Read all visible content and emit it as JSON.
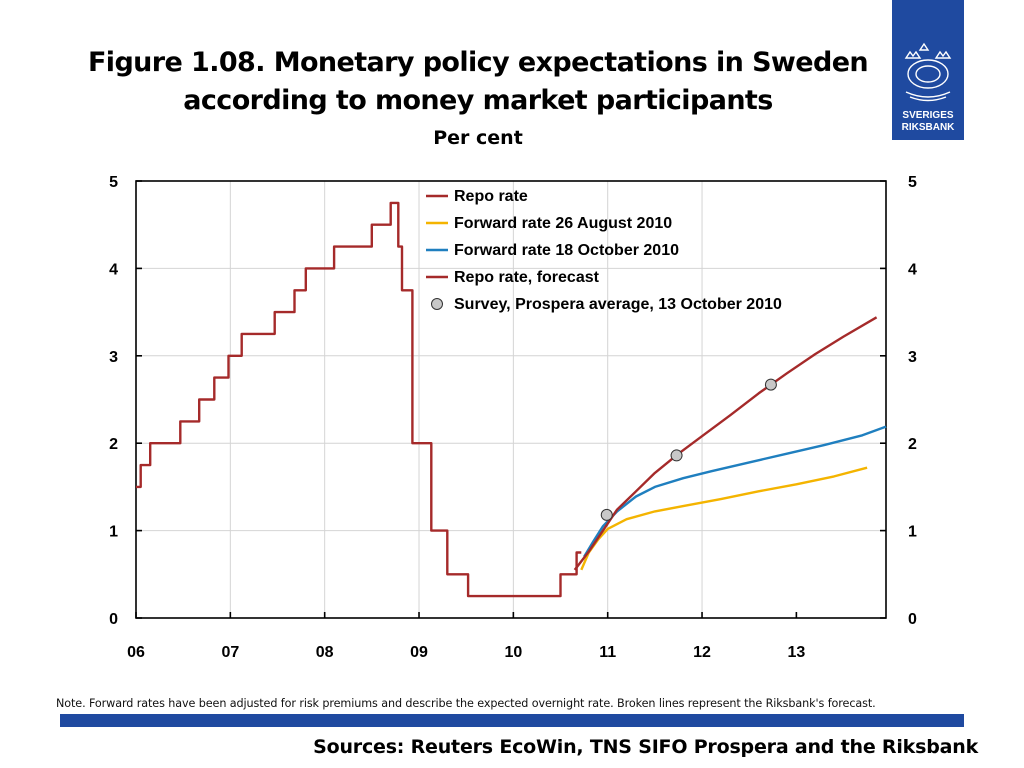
{
  "title_line1": "Figure 1.08. Monetary policy expectations in Sweden",
  "title_line2": "according to money market participants",
  "logo": {
    "line1": "SVERIGES",
    "line2": "RIKSBANK",
    "color": "#1f4aa0"
  },
  "note": "Note. Forward rates have been adjusted for risk premiums and describe the expected overnight rate. Broken lines represent the Riksbank's forecast.",
  "sources": "Sources: Reuters EcoWin, TNS SIFO Prospera and the Riksbank",
  "chart_data": {
    "type": "line",
    "title": "Per cent",
    "xlim": [
      2006.0,
      2013.95
    ],
    "ylim": [
      0,
      5
    ],
    "yticks": [
      0,
      1,
      2,
      3,
      4,
      5
    ],
    "xticks": [
      {
        "value": 2006.0,
        "label": "06"
      },
      {
        "value": 2007.0,
        "label": "07"
      },
      {
        "value": 2008.0,
        "label": "08"
      },
      {
        "value": 2009.0,
        "label": "09"
      },
      {
        "value": 2010.0,
        "label": "10"
      },
      {
        "value": 2011.0,
        "label": "11"
      },
      {
        "value": 2012.0,
        "label": "12"
      },
      {
        "value": 2013.0,
        "label": "13"
      }
    ],
    "vgrid": [
      2007.0,
      2008.0,
      2009.0,
      2010.0,
      2011.0,
      2012.0
    ],
    "series": [
      {
        "name": "Repo rate",
        "color": "#a52a2a",
        "step": true,
        "points": [
          [
            2006.0,
            1.5
          ],
          [
            2006.05,
            1.75
          ],
          [
            2006.15,
            2.0
          ],
          [
            2006.47,
            2.25
          ],
          [
            2006.67,
            2.5
          ],
          [
            2006.83,
            2.75
          ],
          [
            2006.98,
            3.0
          ],
          [
            2007.12,
            3.25
          ],
          [
            2007.47,
            3.5
          ],
          [
            2007.68,
            3.75
          ],
          [
            2007.8,
            4.0
          ],
          [
            2008.1,
            4.25
          ],
          [
            2008.5,
            4.5
          ],
          [
            2008.7,
            4.75
          ],
          [
            2008.78,
            4.25
          ],
          [
            2008.82,
            3.75
          ],
          [
            2008.93,
            2.0
          ],
          [
            2009.13,
            1.0
          ],
          [
            2009.3,
            0.5
          ],
          [
            2009.52,
            0.25
          ],
          [
            2010.5,
            0.5
          ],
          [
            2010.67,
            0.75
          ],
          [
            2010.72,
            0.75
          ]
        ]
      },
      {
        "name": "Forward rate 26 August 2010",
        "color": "#f4b400",
        "points": [
          [
            2010.72,
            0.55
          ],
          [
            2010.8,
            0.75
          ],
          [
            2010.9,
            0.9
          ],
          [
            2011.0,
            1.02
          ],
          [
            2011.2,
            1.13
          ],
          [
            2011.5,
            1.22
          ],
          [
            2011.8,
            1.28
          ],
          [
            2012.2,
            1.36
          ],
          [
            2012.6,
            1.45
          ],
          [
            2013.0,
            1.53
          ],
          [
            2013.4,
            1.62
          ],
          [
            2013.75,
            1.72
          ]
        ]
      },
      {
        "name": "Forward rate 18 October 2010",
        "color": "#1f7fbf",
        "points": [
          [
            2010.75,
            0.7
          ],
          [
            2010.85,
            0.88
          ],
          [
            2010.95,
            1.05
          ],
          [
            2011.1,
            1.22
          ],
          [
            2011.3,
            1.39
          ],
          [
            2011.5,
            1.5
          ],
          [
            2011.8,
            1.6
          ],
          [
            2012.1,
            1.68
          ],
          [
            2012.5,
            1.78
          ],
          [
            2012.9,
            1.88
          ],
          [
            2013.3,
            1.98
          ],
          [
            2013.7,
            2.09
          ],
          [
            2013.95,
            2.19
          ]
        ]
      },
      {
        "name": "Repo rate, forecast",
        "color": "#a52a2a",
        "points": [
          [
            2010.65,
            0.55
          ],
          [
            2010.8,
            0.76
          ],
          [
            2010.95,
            1.0
          ],
          [
            2011.1,
            1.24
          ],
          [
            2011.3,
            1.45
          ],
          [
            2011.5,
            1.66
          ],
          [
            2011.75,
            1.88
          ],
          [
            2012.0,
            2.08
          ],
          [
            2012.3,
            2.32
          ],
          [
            2012.6,
            2.57
          ],
          [
            2012.9,
            2.8
          ],
          [
            2013.2,
            3.02
          ],
          [
            2013.5,
            3.22
          ],
          [
            2013.85,
            3.44
          ]
        ]
      }
    ],
    "survey": {
      "name": "Survey, Prospera average, 13 October 2010",
      "fill": "#c8c8c8",
      "points": [
        [
          2010.99,
          1.18
        ],
        [
          2011.73,
          1.86
        ],
        [
          2012.73,
          2.67
        ]
      ]
    }
  }
}
